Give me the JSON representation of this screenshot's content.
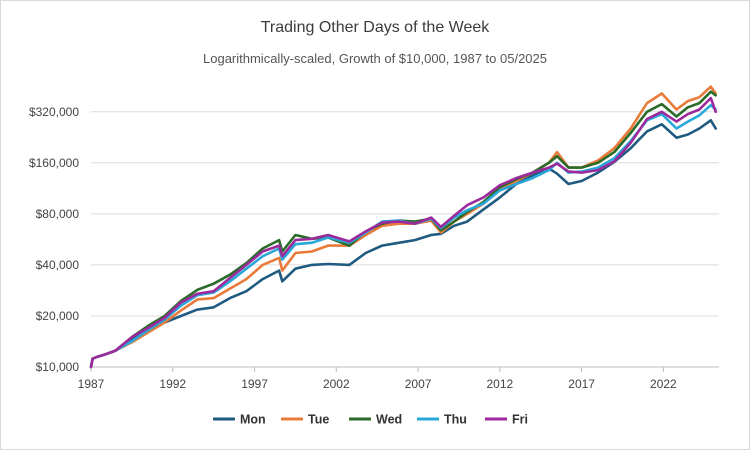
{
  "chart_data": {
    "type": "line",
    "title": "Trading Other Days of the Week",
    "subtitle": "Logarithmically-scaled, Growth of $10,000, 1987 to 05/2025",
    "xlabel": "",
    "ylabel": "",
    "yscale": "log",
    "xlim": [
      1987.0,
      2025.4
    ],
    "ylim": [
      10000,
      520000
    ],
    "grid": "horizontal",
    "legend_position": "bottom",
    "xticks": [
      1987,
      1992,
      1997,
      2002,
      2007,
      2012,
      2017,
      2022
    ],
    "xtick_labels": [
      "1987",
      "1992",
      "1997",
      "2002",
      "2007",
      "2012",
      "2017",
      "2022"
    ],
    "yticks": [
      10000,
      20000,
      40000,
      80000,
      160000,
      320000
    ],
    "ytick_labels": [
      "$10,000",
      "$20,000",
      "$40,000",
      "$80,000",
      "$160,000",
      "$320,000"
    ],
    "x": [
      1987.0,
      1987.1,
      1987.4,
      1987.8,
      1988.5,
      1989.5,
      1990.5,
      1991.5,
      1992.5,
      1993.5,
      1994.5,
      1995.5,
      1996.5,
      1997.5,
      1998.5,
      1998.7,
      1999.5,
      2000.5,
      2001.5,
      2002.8,
      2003.8,
      2004.8,
      2005.8,
      2006.8,
      2007.8,
      2008.4,
      2009.2,
      2010.0,
      2011.0,
      2012.0,
      2013.0,
      2014.0,
      2015.0,
      2015.5,
      2016.2,
      2017.0,
      2018.0,
      2019.0,
      2020.0,
      2021.0,
      2021.9,
      2022.8,
      2023.5,
      2024.2,
      2024.9,
      2025.2
    ],
    "series": [
      {
        "name": "Mon",
        "color": "#1f5a80",
        "values": [
          10000,
          11200,
          11500,
          11800,
          12500,
          14500,
          17000,
          18300,
          20000,
          21800,
          22500,
          25500,
          28000,
          33000,
          37000,
          32000,
          38000,
          40000,
          40500,
          40000,
          47000,
          52000,
          54000,
          56000,
          60000,
          61000,
          68000,
          72000,
          85000,
          100000,
          120000,
          135000,
          148000,
          138000,
          120000,
          125000,
          140000,
          162000,
          195000,
          245000,
          270000,
          225000,
          235000,
          255000,
          285000,
          255000
        ]
      },
      {
        "name": "Tue",
        "color": "#e87b3a",
        "values": [
          10000,
          11200,
          11500,
          11800,
          12500,
          14000,
          16000,
          18300,
          21500,
          25000,
          25500,
          29000,
          33000,
          40000,
          44000,
          37000,
          47000,
          48000,
          52000,
          52000,
          60000,
          68000,
          70000,
          70000,
          73000,
          62000,
          72000,
          80000,
          92000,
          112000,
          125000,
          140000,
          160000,
          185000,
          150000,
          150000,
          165000,
          195000,
          255000,
          360000,
          410000,
          330000,
          370000,
          390000,
          450000,
          410000
        ]
      },
      {
        "name": "Wed",
        "color": "#2a6b2a",
        "values": [
          10000,
          11200,
          11500,
          11800,
          12500,
          15000,
          17500,
          20000,
          24500,
          28500,
          31000,
          35000,
          41000,
          50000,
          56000,
          48000,
          60000,
          57000,
          58000,
          52000,
          63000,
          70000,
          73000,
          72000,
          75000,
          64000,
          72000,
          82000,
          94000,
          115000,
          128000,
          140000,
          160000,
          175000,
          150000,
          150000,
          160000,
          185000,
          240000,
          320000,
          355000,
          300000,
          340000,
          360000,
          420000,
          400000
        ]
      },
      {
        "name": "Thu",
        "color": "#29a7d9",
        "values": [
          10000,
          11200,
          11500,
          11800,
          12500,
          14200,
          16500,
          19000,
          23000,
          26500,
          27500,
          32000,
          38000,
          45000,
          50000,
          43000,
          53000,
          54000,
          58000,
          54000,
          62000,
          72000,
          73000,
          70000,
          75000,
          66000,
          76000,
          84000,
          92000,
          110000,
          120000,
          130000,
          145000,
          160000,
          140000,
          142000,
          150000,
          170000,
          215000,
          285000,
          310000,
          255000,
          280000,
          305000,
          350000,
          330000
        ]
      },
      {
        "name": "Fri",
        "color": "#9c2a9c",
        "values": [
          10000,
          11200,
          11500,
          11800,
          12500,
          15000,
          17000,
          19500,
          24000,
          27000,
          28000,
          33500,
          40000,
          48000,
          52000,
          45000,
          56000,
          57000,
          60000,
          55000,
          63000,
          71000,
          72000,
          70000,
          76000,
          67000,
          78000,
          90000,
          100000,
          118000,
          130000,
          140000,
          150000,
          158000,
          142000,
          140000,
          145000,
          163000,
          210000,
          290000,
          320000,
          280000,
          310000,
          330000,
          385000,
          320000
        ]
      }
    ]
  }
}
